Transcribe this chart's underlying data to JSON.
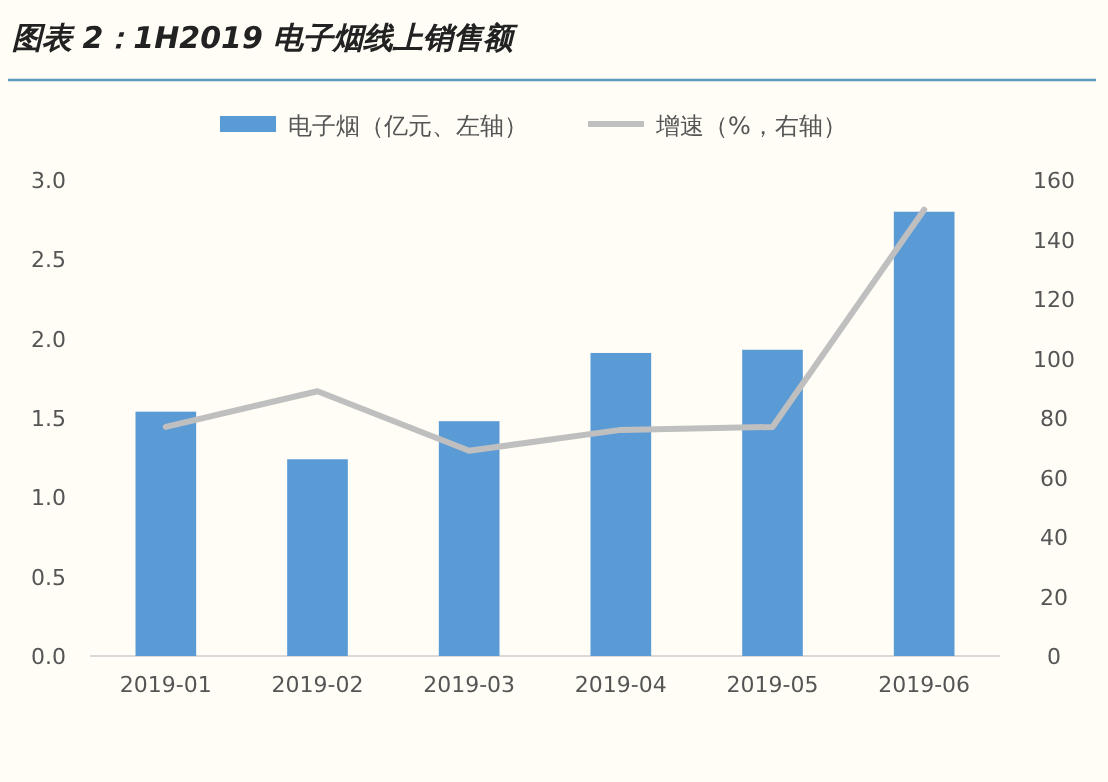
{
  "chart_data": {
    "type": "bar",
    "title": "图表 2：1H2019 电子烟线上销售额",
    "categories": [
      "2019-01",
      "2019-02",
      "2019-03",
      "2019-04",
      "2019-05",
      "2019-06"
    ],
    "series": [
      {
        "name": "电子烟（亿元、左轴）",
        "color": "#5b9bd5",
        "values": [
          1.54,
          1.24,
          1.48,
          1.91,
          1.93,
          2.8
        ]
      },
      {
        "name": "增速（%，右轴）",
        "type": "line",
        "axis": "y2",
        "color": "#bfbfbf",
        "values": [
          77,
          89,
          69,
          76,
          77,
          150
        ]
      }
    ],
    "ylim": [
      0,
      3.0
    ],
    "yticks": [
      {
        "value": 0,
        "label": "0.0"
      },
      {
        "value": 0.5,
        "label": "0.5"
      },
      {
        "value": 1,
        "label": "1.0"
      },
      {
        "value": 1.5,
        "label": "1.5"
      },
      {
        "value": 2,
        "label": "2.0"
      },
      {
        "value": 2.5,
        "label": "2.5"
      },
      {
        "value": 3,
        "label": "3.0"
      }
    ],
    "y2lim": [
      0,
      160
    ],
    "y2ticks": [
      0,
      20,
      40,
      60,
      80,
      100,
      120,
      140,
      160
    ],
    "legend": "top",
    "grid": false
  }
}
